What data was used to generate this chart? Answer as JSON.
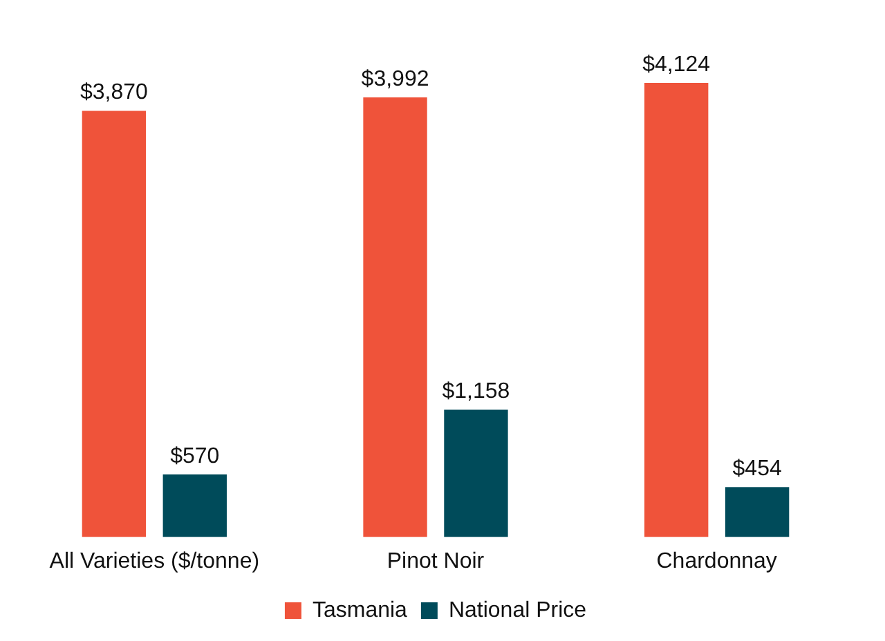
{
  "chart_data": {
    "type": "bar",
    "categories": [
      "All Varieties ($/tonne)",
      "Pinot Noir",
      "Chardonnay"
    ],
    "series": [
      {
        "name": "Tasmania",
        "color": "#ef533a",
        "values": [
          3870,
          3992,
          4124
        ],
        "value_labels": [
          "$3,870",
          "$3,992",
          "$4,124"
        ]
      },
      {
        "name": "National Price",
        "color": "#004b5a",
        "values": [
          570,
          1158,
          454
        ],
        "value_labels": [
          "$570",
          "$1,158",
          "$454"
        ]
      }
    ],
    "legend": "bottom",
    "grid": false
  }
}
